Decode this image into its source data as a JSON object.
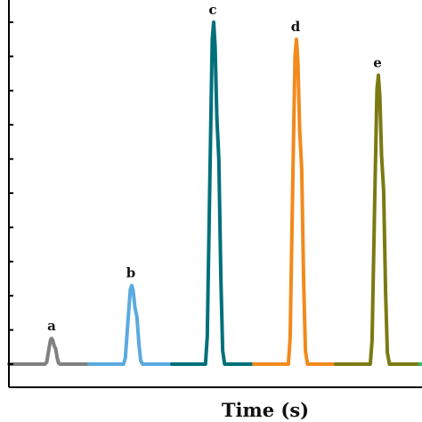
{
  "chart_data": {
    "type": "line",
    "xlabel": "Time (s)",
    "ylabel": "",
    "title": "",
    "ylim": [
      0,
      10
    ],
    "ytick_count": 11,
    "grid": false,
    "legend": "none",
    "baseline": 0,
    "series": [
      {
        "label": "a",
        "color": "#808080",
        "peak_height": 0.75
      },
      {
        "label": "b",
        "color": "#5aaae0",
        "peak_height": 2.3
      },
      {
        "label": "c",
        "color": "#00707a",
        "peak_height": 10.0
      },
      {
        "label": "d",
        "color": "#f28a1c",
        "peak_height": 9.5
      },
      {
        "label": "e",
        "color": "#7a7a12",
        "peak_height": 8.45
      }
    ],
    "trailing_color": "#3cb371"
  }
}
